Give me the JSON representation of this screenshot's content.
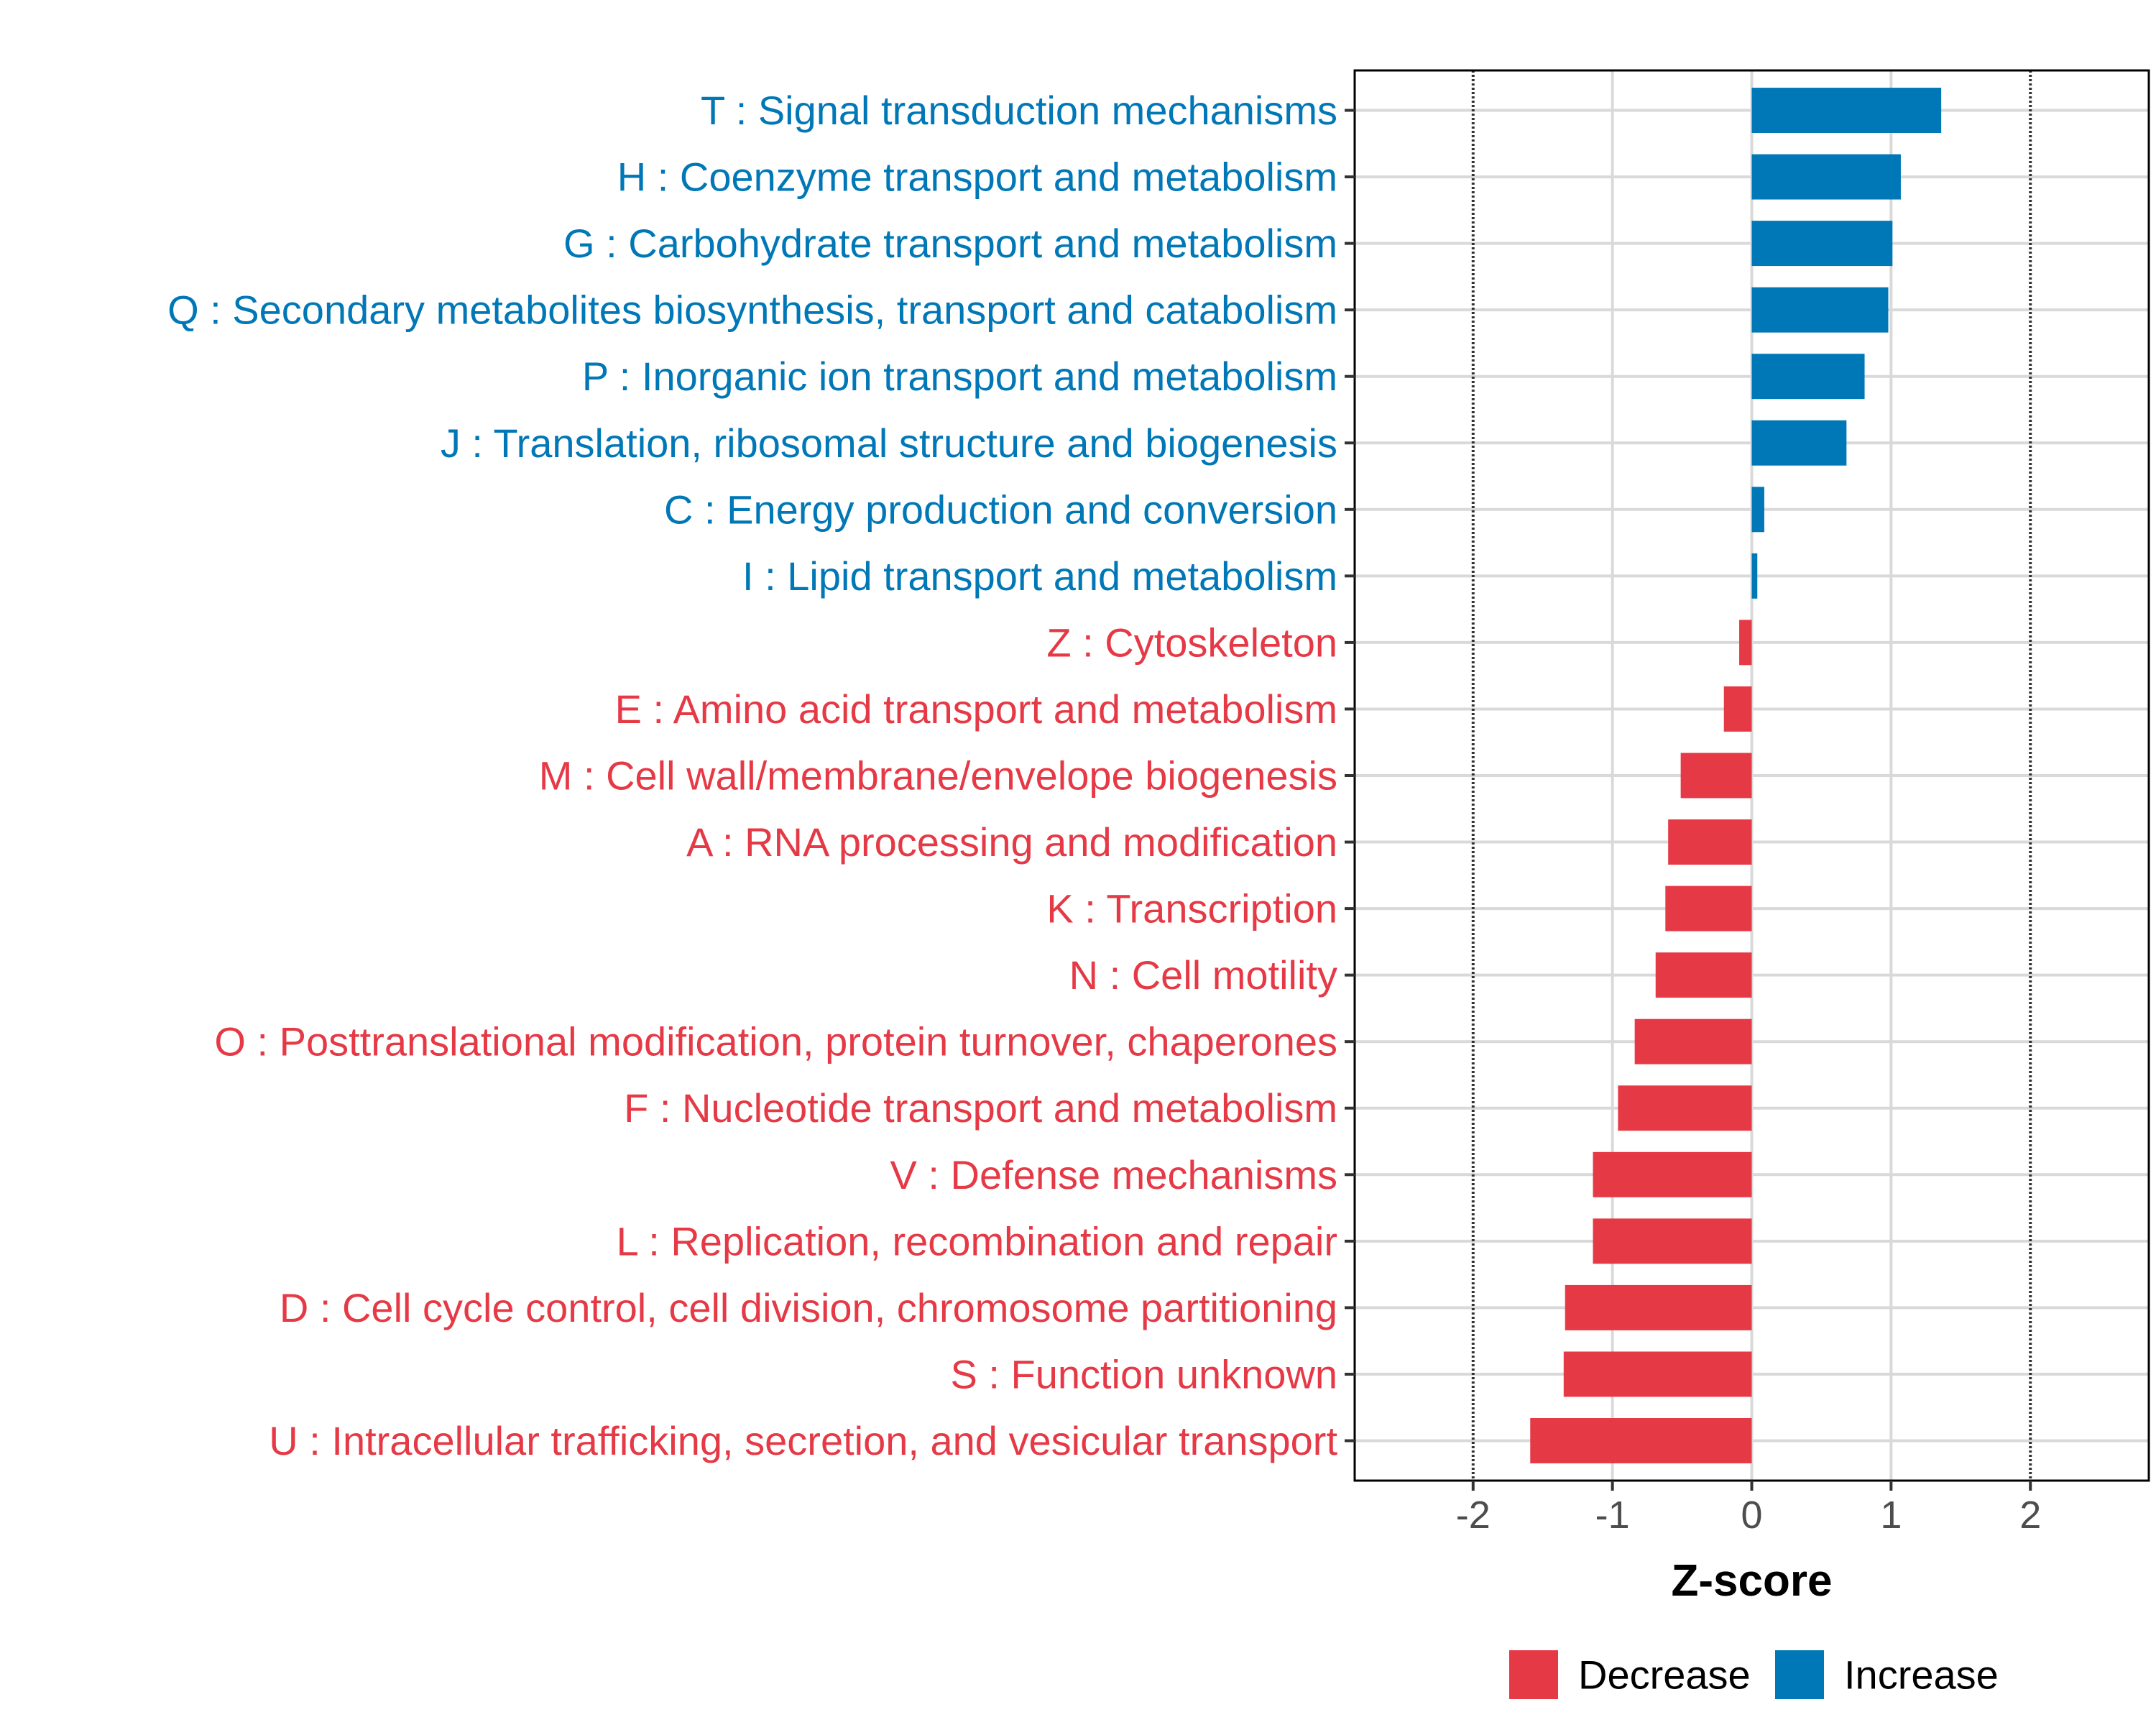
{
  "chart_data": {
    "type": "bar",
    "orientation": "horizontal",
    "xlabel": "Z-score",
    "ylabel": "",
    "xlim": [
      -2.85,
      2.85
    ],
    "xticks": [
      -2,
      -1,
      0,
      1,
      2
    ],
    "xtick_labels": [
      "-2",
      "-1",
      "0",
      "1",
      "2"
    ],
    "reference_lines": [
      -2,
      2
    ],
    "grid": true,
    "legend_position": "bottom",
    "legend": [
      {
        "label": "Decrease",
        "color": "#e63946"
      },
      {
        "label": "Increase",
        "color": "#0077b6"
      }
    ],
    "colors": {
      "Increase": "#0077b6",
      "Decrease": "#e63946"
    },
    "categories": [
      "T : Signal transduction mechanisms",
      "H : Coenzyme transport and metabolism",
      "G : Carbohydrate transport and metabolism",
      "Q : Secondary metabolites biosynthesis, transport and catabolism",
      "P : Inorganic ion transport and metabolism",
      "J : Translation, ribosomal structure and biogenesis",
      "C : Energy production and conversion",
      "I : Lipid transport and metabolism",
      "Z : Cytoskeleton",
      "E : Amino acid transport and metabolism",
      "M : Cell wall/membrane/envelope biogenesis",
      "A : RNA processing and modification",
      "K : Transcription",
      "N : Cell motility",
      "O : Posttranslational modification, protein turnover, chaperones",
      "F : Nucleotide transport and metabolism",
      "V : Defense mechanisms",
      "L : Replication, recombination and repair",
      "D : Cell cycle control, cell division, chromosome partitioning",
      "S : Function unknown",
      "U : Intracellular trafficking, secretion, and vesicular transport"
    ],
    "values": [
      1.36,
      1.07,
      1.01,
      0.98,
      0.81,
      0.68,
      0.09,
      0.04,
      -0.09,
      -0.2,
      -0.51,
      -0.6,
      -0.62,
      -0.69,
      -0.84,
      -0.96,
      -1.14,
      -1.14,
      -1.34,
      -1.35,
      -1.59
    ]
  }
}
